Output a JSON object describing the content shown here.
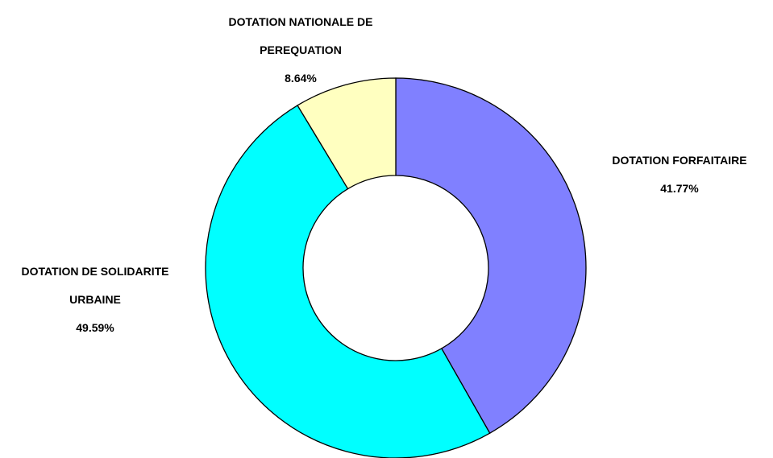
{
  "chart_data": {
    "type": "donut",
    "categories": [
      "DOTATION FORFAITAIRE",
      "DOTATION DE SOLIDARITE URBAINE",
      "DOTATION NATIONALE DE PEREQUATION"
    ],
    "values": [
      41.77,
      49.59,
      8.64
    ],
    "value_labels": [
      "41.77%",
      "49.59%",
      "8.64%"
    ],
    "colors": [
      "#8080ff",
      "#00ffff",
      "#ffffc0"
    ]
  }
}
